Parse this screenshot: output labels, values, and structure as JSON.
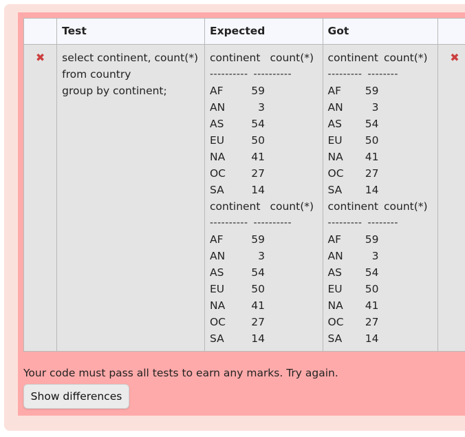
{
  "table": {
    "headers": {
      "test": "Test",
      "expected": "Expected",
      "got": "Got"
    },
    "status_left": "✖",
    "status_right": "✖",
    "test_code": "select continent, count(*)\nfrom country\ngroup by continent;",
    "expected": {
      "blocks": [
        {
          "header_a": "continent",
          "header_b": "count(*)",
          "dash_a": "----------",
          "dash_b": "----------",
          "rows": [
            [
              "AF",
              "59"
            ],
            [
              "AN",
              "3"
            ],
            [
              "AS",
              "54"
            ],
            [
              "EU",
              "50"
            ],
            [
              "NA",
              "41"
            ],
            [
              "OC",
              "27"
            ],
            [
              "SA",
              "14"
            ]
          ]
        },
        {
          "header_a": "continent",
          "header_b": "count(*)",
          "dash_a": "----------",
          "dash_b": "----------",
          "rows": [
            [
              "AF",
              "59"
            ],
            [
              "AN",
              "3"
            ],
            [
              "AS",
              "54"
            ],
            [
              "EU",
              "50"
            ],
            [
              "NA",
              "41"
            ],
            [
              "OC",
              "27"
            ],
            [
              "SA",
              "14"
            ]
          ]
        }
      ]
    },
    "got": {
      "blocks": [
        {
          "header_a": "continent",
          "header_b": "count(*)",
          "dash_a": "---------",
          "dash_b": "--------",
          "rows": [
            [
              "AF",
              "59"
            ],
            [
              "AN",
              "3"
            ],
            [
              "AS",
              "54"
            ],
            [
              "EU",
              "50"
            ],
            [
              "NA",
              "41"
            ],
            [
              "OC",
              "27"
            ],
            [
              "SA",
              "14"
            ]
          ]
        },
        {
          "header_a": "continent",
          "header_b": "count(*)",
          "dash_a": "---------",
          "dash_b": "--------",
          "rows": [
            [
              "AF",
              "59"
            ],
            [
              "AN",
              "3"
            ],
            [
              "AS",
              "54"
            ],
            [
              "EU",
              "50"
            ],
            [
              "NA",
              "41"
            ],
            [
              "OC",
              "27"
            ],
            [
              "SA",
              "14"
            ]
          ]
        }
      ]
    }
  },
  "feedback": "Your code must pass all tests to earn any marks. Try again.",
  "show_differences_label": "Show differences",
  "colors": {
    "outer_bg": "#fbe1dc",
    "inner_bg": "#ffaaaa",
    "cross": "#cc3e3e"
  }
}
